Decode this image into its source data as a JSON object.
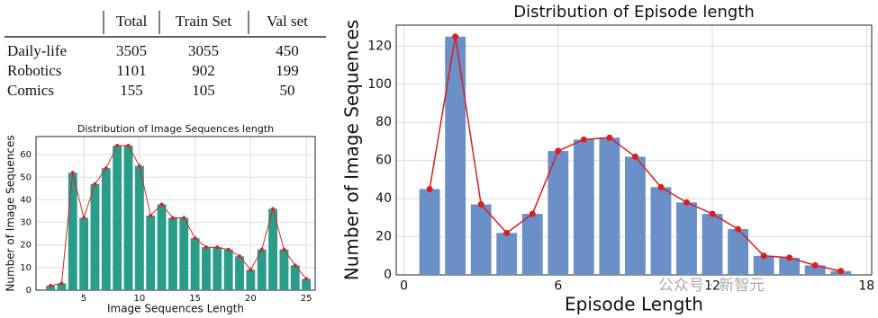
{
  "table": {
    "columns": [
      "Total",
      "Train Set",
      "Val set"
    ],
    "rows": [
      [
        "Daily-life",
        3505,
        3055,
        450
      ],
      [
        "Robotics",
        1101,
        902,
        199
      ],
      [
        "Comics",
        155,
        105,
        50
      ]
    ]
  },
  "chart_data": [
    {
      "type": "bar",
      "title": "Distribution of Image Sequences length",
      "x_label": "Image Sequences Length",
      "y_label": "Number of Image Sequences",
      "x": [
        2,
        3,
        4,
        5,
        6,
        7,
        8,
        9,
        10,
        11,
        12,
        13,
        14,
        15,
        16,
        17,
        18,
        19,
        20,
        21,
        22,
        23,
        24,
        25
      ],
      "values": [
        2,
        3,
        52,
        32,
        47,
        54,
        64,
        64,
        55,
        33,
        38,
        32,
        32,
        23,
        19,
        19,
        18,
        15,
        9,
        18,
        36,
        18,
        11,
        5
      ],
      "color": "#2a9d8a",
      "line_color": "#d62728",
      "xlim": [
        0.7,
        25.8
      ],
      "xticks": [
        5,
        10,
        15,
        20,
        25
      ],
      "ylim": [
        0,
        68
      ],
      "yticks": [
        0,
        10,
        20,
        30,
        40,
        50,
        60
      ],
      "grid": true
    },
    {
      "type": "bar",
      "title": "Distribution of Episode length",
      "x_label": "Episode Length",
      "y_label": "Number of Image Sequences",
      "x": [
        1,
        2,
        3,
        4,
        5,
        6,
        7,
        8,
        9,
        10,
        11,
        12,
        13,
        14,
        15,
        16,
        17
      ],
      "values": [
        45,
        125,
        37,
        22,
        32,
        65,
        71,
        72,
        62,
        46,
        38,
        32,
        24,
        10,
        9,
        5,
        2
      ],
      "color": "#6b8fc7",
      "line_color": "#d62020",
      "xlim": [
        -0.3,
        18.2
      ],
      "xticks": [
        0,
        6,
        12,
        18
      ],
      "ylim": [
        0,
        131
      ],
      "yticks": [
        0,
        20,
        40,
        60,
        80,
        100,
        120
      ],
      "grid": true
    }
  ],
  "watermark": "公众号 · 新智元"
}
